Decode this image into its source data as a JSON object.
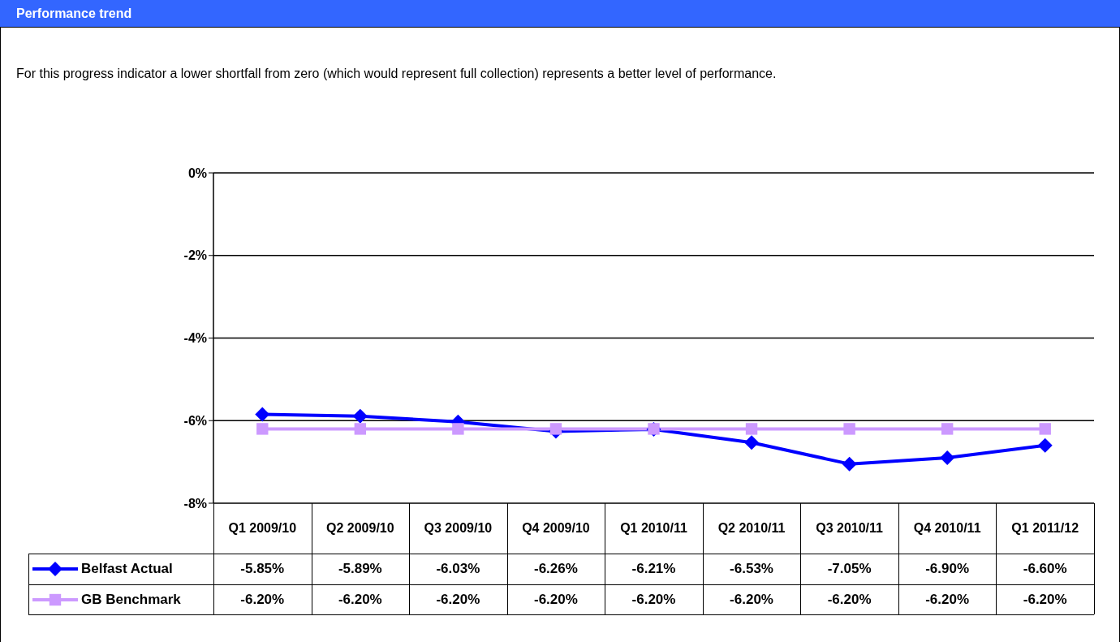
{
  "chart_data": {
    "type": "line",
    "title": "Performance trend",
    "subtitle": "For this progress indicator a lower shortfall from zero (which would represent full collection) represents a better level of performance.",
    "categories": [
      "Q1 2009/10",
      "Q2 2009/10",
      "Q3 2009/10",
      "Q4 2009/10",
      "Q1 2010/11",
      "Q2 2010/11",
      "Q3 2010/11",
      "Q4 2010/11",
      "Q1 2011/12"
    ],
    "series": [
      {
        "name": "Belfast Actual",
        "color": "#0000ff",
        "marker": "diamond",
        "values": [
          -5.85,
          -5.89,
          -6.03,
          -6.26,
          -6.21,
          -6.53,
          -7.05,
          -6.9,
          -6.6
        ],
        "value_labels": [
          "-5.85%",
          "-5.89%",
          "-6.03%",
          "-6.26%",
          "-6.21%",
          "-6.53%",
          "-7.05%",
          "-6.90%",
          "-6.60%"
        ]
      },
      {
        "name": "GB Benchmark",
        "color": "#cc99ff",
        "marker": "square",
        "values": [
          -6.2,
          -6.2,
          -6.2,
          -6.2,
          -6.2,
          -6.2,
          -6.2,
          -6.2,
          -6.2
        ],
        "value_labels": [
          "-6.20%",
          "-6.20%",
          "-6.20%",
          "-6.20%",
          "-6.20%",
          "-6.20%",
          "-6.20%",
          "-6.20%",
          "-6.20%"
        ]
      }
    ],
    "ylim": [
      -8,
      0
    ],
    "yticks": [
      {
        "value": 0,
        "label": "0%"
      },
      {
        "value": -2,
        "label": "-2%"
      },
      {
        "value": -4,
        "label": "-4%"
      },
      {
        "value": -6,
        "label": "-6%"
      },
      {
        "value": -8,
        "label": "-8%"
      }
    ],
    "grid": "y",
    "legend": "bottom left",
    "line_style": "solid"
  }
}
